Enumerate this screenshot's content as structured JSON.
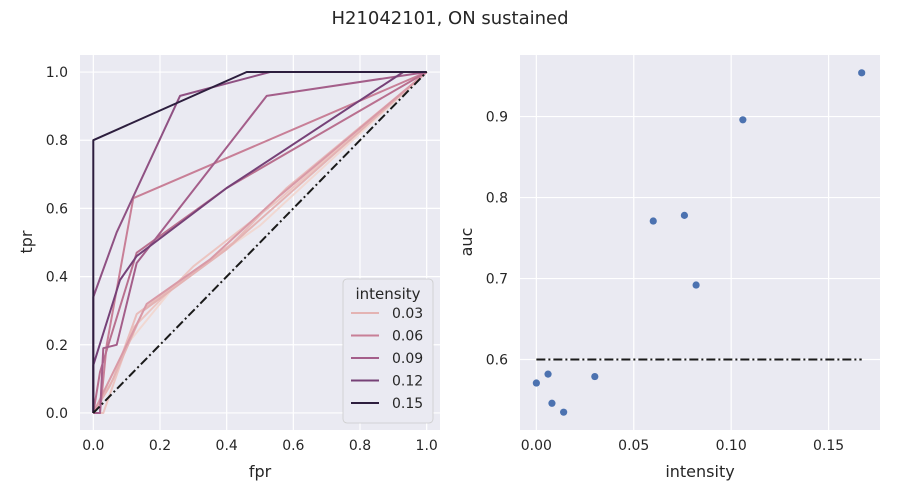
{
  "title": "H21042101, ON sustained",
  "chart_data": [
    {
      "type": "line",
      "xlabel": "fpr",
      "ylabel": "tpr",
      "xlim": [
        -0.04,
        1.04
      ],
      "ylim": [
        -0.05,
        1.05
      ],
      "xticks": [
        "0.0",
        "0.2",
        "0.4",
        "0.6",
        "0.8",
        "1.0"
      ],
      "yticks": [
        "0.0",
        "0.2",
        "0.4",
        "0.6",
        "0.8",
        "1.0"
      ],
      "grid": true,
      "legend": {
        "title": "intensity",
        "placement": "lower-right",
        "entries": [
          {
            "label": "0.03",
            "color": "#e4b3b3"
          },
          {
            "label": "0.06",
            "color": "#c87f97"
          },
          {
            "label": "0.09",
            "color": "#a45e8a"
          },
          {
            "label": "0.12",
            "color": "#764177"
          },
          {
            "label": "0.15",
            "color": "#2d1e3e"
          }
        ]
      },
      "series": [
        {
          "color": "#f1d8d2",
          "points": [
            [
              0,
              0
            ],
            [
              0.1,
              0.2
            ],
            [
              0.25,
              0.38
            ],
            [
              0.5,
              0.55
            ],
            [
              1,
              1
            ]
          ]
        },
        {
          "color": "#ecc5c1",
          "points": [
            [
              0,
              0
            ],
            [
              0.03,
              0.0
            ],
            [
              0.12,
              0.25
            ],
            [
              0.3,
              0.43
            ],
            [
              0.55,
              0.62
            ],
            [
              1,
              1
            ]
          ]
        },
        {
          "color": "#e8bcbb",
          "points": [
            [
              0,
              0
            ],
            [
              0.06,
              0.1
            ],
            [
              0.13,
              0.29
            ],
            [
              0.42,
              0.5
            ],
            [
              0.58,
              0.66
            ],
            [
              1,
              1
            ]
          ]
        },
        {
          "color": "#e4b3b3",
          "points": [
            [
              0,
              0
            ],
            [
              0.05,
              0.08
            ],
            [
              0.15,
              0.3
            ],
            [
              0.4,
              0.48
            ],
            [
              1,
              1
            ]
          ]
        },
        {
          "color": "#d99aa7",
          "points": [
            [
              0,
              0
            ],
            [
              0.16,
              0.32
            ],
            [
              0.35,
              0.45
            ],
            [
              0.55,
              0.63
            ],
            [
              1,
              1
            ]
          ]
        },
        {
          "color": "#c87f97",
          "points": [
            [
              0,
              0
            ],
            [
              0.02,
              0.0
            ],
            [
              0.04,
              0.2
            ],
            [
              0.12,
              0.63
            ],
            [
              1,
              1
            ]
          ]
        },
        {
          "color": "#b9708f",
          "points": [
            [
              0,
              0
            ],
            [
              0.02,
              0.12
            ],
            [
              0.13,
              0.47
            ],
            [
              0.4,
              0.66
            ],
            [
              1,
              1
            ]
          ]
        },
        {
          "color": "#a45e8a",
          "points": [
            [
              0,
              0
            ],
            [
              0.02,
              0.0
            ],
            [
              0.03,
              0.19
            ],
            [
              0.07,
              0.2
            ],
            [
              0.13,
              0.44
            ],
            [
              0.52,
              0.93
            ],
            [
              1,
              1
            ]
          ]
        },
        {
          "color": "#8f5183",
          "points": [
            [
              0,
              0
            ],
            [
              0,
              0.34
            ],
            [
              0.07,
              0.53
            ],
            [
              0.26,
              0.93
            ],
            [
              0.53,
              1
            ],
            [
              1,
              1
            ]
          ]
        },
        {
          "color": "#764177",
          "points": [
            [
              0,
              0
            ],
            [
              0,
              0.14
            ],
            [
              0.08,
              0.39
            ],
            [
              0.13,
              0.46
            ],
            [
              0.4,
              0.66
            ],
            [
              0.93,
              1
            ],
            [
              1,
              1
            ]
          ]
        },
        {
          "color": "#2d1e3e",
          "points": [
            [
              0,
              0
            ],
            [
              0,
              0.8
            ],
            [
              0.46,
              1
            ],
            [
              1,
              1
            ]
          ]
        }
      ],
      "reference_line": {
        "points": [
          [
            0,
            0
          ],
          [
            1,
            1
          ]
        ],
        "style": "dash-dot",
        "color": "#1a1a1a"
      }
    },
    {
      "type": "scatter",
      "xlabel": "intensity",
      "ylabel": "auc",
      "xlim": [
        -0.0084,
        0.1764
      ],
      "ylim": [
        0.513,
        0.976
      ],
      "xticks": [
        "0.00",
        "0.05",
        "0.10",
        "0.15"
      ],
      "yticks": [
        "0.6",
        "0.7",
        "0.8",
        "0.9"
      ],
      "grid": true,
      "marker_color": "#4c72b0",
      "points": [
        {
          "x": 0.0,
          "y": 0.571
        },
        {
          "x": 0.006,
          "y": 0.582
        },
        {
          "x": 0.008,
          "y": 0.546
        },
        {
          "x": 0.014,
          "y": 0.535
        },
        {
          "x": 0.03,
          "y": 0.579
        },
        {
          "x": 0.06,
          "y": 0.771
        },
        {
          "x": 0.076,
          "y": 0.778
        },
        {
          "x": 0.082,
          "y": 0.692
        },
        {
          "x": 0.106,
          "y": 0.896
        },
        {
          "x": 0.167,
          "y": 0.954
        }
      ],
      "hline": {
        "y": 0.6,
        "x_range": [
          0.0,
          0.167
        ],
        "style": "dash-dot",
        "color": "#1a1a1a"
      }
    }
  ]
}
